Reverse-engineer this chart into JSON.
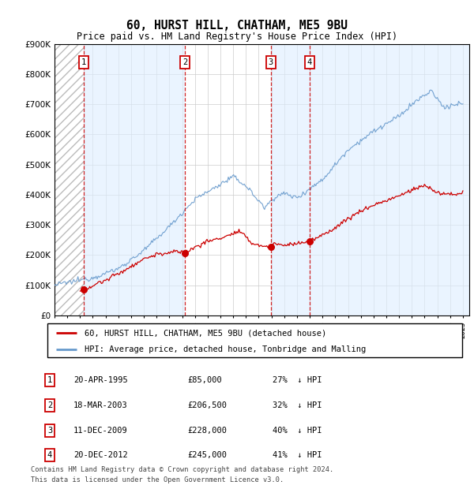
{
  "title": "60, HURST HILL, CHATHAM, ME5 9BU",
  "subtitle": "Price paid vs. HM Land Registry's House Price Index (HPI)",
  "ylim": [
    0,
    900000
  ],
  "yticks": [
    0,
    100000,
    200000,
    300000,
    400000,
    500000,
    600000,
    700000,
    800000,
    900000
  ],
  "ytick_labels": [
    "£0",
    "£100K",
    "£200K",
    "£300K",
    "£400K",
    "£500K",
    "£600K",
    "£700K",
    "£800K",
    "£900K"
  ],
  "xlim_start": 1993.0,
  "xlim_end": 2025.5,
  "purchases": [
    {
      "num": 1,
      "date": "20-APR-1995",
      "year": 1995.29,
      "price": 85000,
      "pct": "27%",
      "direction": "↓"
    },
    {
      "num": 2,
      "date": "18-MAR-2003",
      "year": 2003.21,
      "price": 206500,
      "pct": "32%",
      "direction": "↓"
    },
    {
      "num": 3,
      "date": "11-DEC-2009",
      "year": 2009.94,
      "price": 228000,
      "pct": "40%",
      "direction": "↓"
    },
    {
      "num": 4,
      "date": "20-DEC-2012",
      "year": 2012.97,
      "price": 245000,
      "pct": "41%",
      "direction": "↓"
    }
  ],
  "legend_label_red": "60, HURST HILL, CHATHAM, ME5 9BU (detached house)",
  "legend_label_blue": "HPI: Average price, detached house, Tonbridge and Malling",
  "footer1": "Contains HM Land Registry data © Crown copyright and database right 2024.",
  "footer2": "This data is licensed under the Open Government Licence v3.0.",
  "red_color": "#cc0000",
  "blue_line_color": "#6699cc",
  "hatch_color": "#aaaaaa",
  "shade_color": "#ddeeff",
  "grid_color": "#cccccc",
  "bg_color": "#ffffff"
}
